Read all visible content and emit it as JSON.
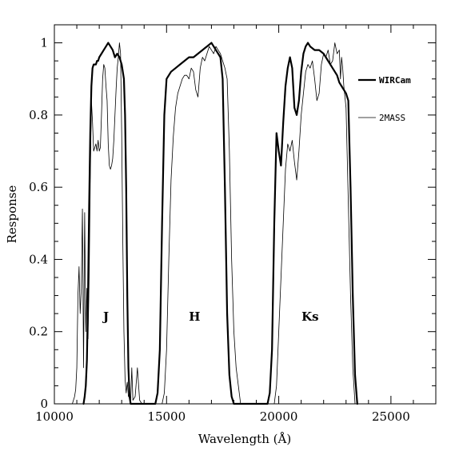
{
  "chart_data": {
    "type": "line",
    "title": "",
    "xlabel": "Wavelength (Å)",
    "ylabel": "Response",
    "xlim": [
      10000,
      27000
    ],
    "ylim": [
      0,
      1.05
    ],
    "grid": false,
    "legend_position": "right",
    "x_ticks": [
      10000,
      15000,
      20000,
      25000
    ],
    "x_tick_labels": [
      "10000",
      "15000",
      "20000",
      "25000"
    ],
    "y_ticks": [
      0,
      0.2,
      0.4,
      0.6,
      0.8,
      1
    ],
    "y_tick_labels": [
      "0",
      "0.2",
      "0.4",
      "0.6",
      "0.8",
      "1"
    ],
    "annotations": [
      {
        "text": "J",
        "x": 12300,
        "y": 0.23
      },
      {
        "text": "H",
        "x": 16250,
        "y": 0.23
      },
      {
        "text": "Ks",
        "x": 21400,
        "y": 0.23
      }
    ],
    "series": [
      {
        "name": "WIRCam",
        "color": "#000000",
        "line_style": "thick",
        "x": [
          11300,
          11350,
          11400,
          11450,
          11500,
          11550,
          11600,
          11650,
          11700,
          11750,
          11800,
          11850,
          11900,
          11950,
          12000,
          12100,
          12200,
          12300,
          12400,
          12500,
          12600,
          12700,
          12800,
          12900,
          13000,
          13100,
          13150,
          13200,
          13250,
          13300,
          13350,
          13400,
          14500,
          14600,
          14700,
          14800,
          14900,
          15000,
          15200,
          15400,
          15600,
          15800,
          16000,
          16200,
          16400,
          16600,
          16800,
          17000,
          17200,
          17400,
          17500,
          17600,
          17700,
          17800,
          17900,
          18000,
          19500,
          19600,
          19700,
          19800,
          19900,
          20000,
          20100,
          20200,
          20300,
          20400,
          20500,
          20600,
          20700,
          20800,
          20900,
          21000,
          21100,
          21200,
          21300,
          21400,
          21600,
          21800,
          22000,
          22200,
          22400,
          22600,
          22700,
          22800,
          22900,
          23000,
          23100,
          23200,
          23300,
          23400,
          23500
        ],
        "y": [
          0,
          0.02,
          0.05,
          0.12,
          0.3,
          0.55,
          0.75,
          0.88,
          0.93,
          0.94,
          0.94,
          0.94,
          0.95,
          0.95,
          0.96,
          0.97,
          0.98,
          0.99,
          1.0,
          0.99,
          0.98,
          0.96,
          0.97,
          0.96,
          0.94,
          0.9,
          0.8,
          0.6,
          0.3,
          0.1,
          0.02,
          0,
          0,
          0.03,
          0.15,
          0.5,
          0.8,
          0.9,
          0.92,
          0.93,
          0.94,
          0.95,
          0.96,
          0.96,
          0.97,
          0.98,
          0.99,
          1.0,
          0.98,
          0.96,
          0.9,
          0.6,
          0.25,
          0.08,
          0.02,
          0,
          0,
          0.03,
          0.15,
          0.5,
          0.75,
          0.7,
          0.66,
          0.78,
          0.88,
          0.93,
          0.96,
          0.93,
          0.82,
          0.8,
          0.84,
          0.92,
          0.97,
          0.99,
          1.0,
          0.99,
          0.98,
          0.98,
          0.97,
          0.95,
          0.93,
          0.91,
          0.89,
          0.88,
          0.87,
          0.86,
          0.84,
          0.6,
          0.3,
          0.08,
          0
        ]
      },
      {
        "name": "2MASS",
        "color": "#000000",
        "line_style": "thin",
        "x": [
          10800,
          10850,
          10900,
          10950,
          11000,
          11050,
          11100,
          11150,
          11200,
          11250,
          11300,
          11350,
          11400,
          11450,
          11500,
          11550,
          11600,
          11650,
          11700,
          11750,
          11800,
          11850,
          11900,
          11950,
          12000,
          12050,
          12100,
          12150,
          12200,
          12250,
          12300,
          12350,
          12400,
          12450,
          12500,
          12550,
          12600,
          12650,
          12700,
          12750,
          12800,
          12850,
          12900,
          12950,
          13000,
          13050,
          13100,
          13150,
          13200,
          13250,
          13300,
          13350,
          13400,
          13450,
          13500,
          13600,
          13700,
          13800,
          13900,
          14000,
          14800,
          14900,
          15000,
          15100,
          15200,
          15300,
          15400,
          15500,
          15600,
          15700,
          15800,
          15900,
          16000,
          16100,
          16200,
          16300,
          16400,
          16500,
          16600,
          16700,
          16800,
          16900,
          17000,
          17100,
          17200,
          17300,
          17400,
          17500,
          17600,
          17700,
          17800,
          17900,
          18000,
          18100,
          18200,
          18300,
          19800,
          19900,
          20000,
          20100,
          20200,
          20300,
          20400,
          20500,
          20600,
          20700,
          20800,
          20900,
          21000,
          21100,
          21200,
          21300,
          21400,
          21500,
          21600,
          21700,
          21800,
          21900,
          22000,
          22100,
          22200,
          22300,
          22400,
          22500,
          22600,
          22700,
          22750,
          22800,
          22850,
          22900,
          23000,
          23100,
          23200,
          23300,
          23400
        ],
        "y": [
          0,
          0.01,
          0.02,
          0.04,
          0.1,
          0.3,
          0.38,
          0.25,
          0.32,
          0.54,
          0.1,
          0.53,
          0.2,
          0.32,
          0.18,
          0.35,
          0.62,
          0.84,
          0.78,
          0.7,
          0.71,
          0.72,
          0.7,
          0.73,
          0.7,
          0.71,
          0.8,
          0.9,
          0.94,
          0.93,
          0.88,
          0.84,
          0.72,
          0.66,
          0.65,
          0.66,
          0.68,
          0.73,
          0.8,
          0.87,
          0.93,
          0.96,
          1.0,
          0.97,
          0.75,
          0.45,
          0.2,
          0.07,
          0.03,
          0.06,
          0.02,
          0.03,
          0.01,
          0.1,
          0.01,
          0.02,
          0.1,
          0.01,
          0.0,
          0,
          0,
          0.03,
          0.15,
          0.4,
          0.62,
          0.74,
          0.82,
          0.86,
          0.88,
          0.9,
          0.91,
          0.91,
          0.9,
          0.93,
          0.92,
          0.87,
          0.85,
          0.93,
          0.96,
          0.95,
          0.97,
          0.99,
          0.98,
          0.97,
          0.99,
          0.98,
          0.97,
          0.95,
          0.93,
          0.9,
          0.7,
          0.4,
          0.2,
          0.1,
          0.05,
          0,
          0,
          0.05,
          0.2,
          0.35,
          0.5,
          0.65,
          0.72,
          0.7,
          0.73,
          0.67,
          0.62,
          0.7,
          0.8,
          0.86,
          0.92,
          0.94,
          0.93,
          0.95,
          0.9,
          0.84,
          0.86,
          0.94,
          0.97,
          0.96,
          0.98,
          0.94,
          0.95,
          1.0,
          0.97,
          0.98,
          0.9,
          0.96,
          0.93,
          0.88,
          0.82,
          0.56,
          0.3,
          0.1,
          0
        ]
      }
    ]
  }
}
